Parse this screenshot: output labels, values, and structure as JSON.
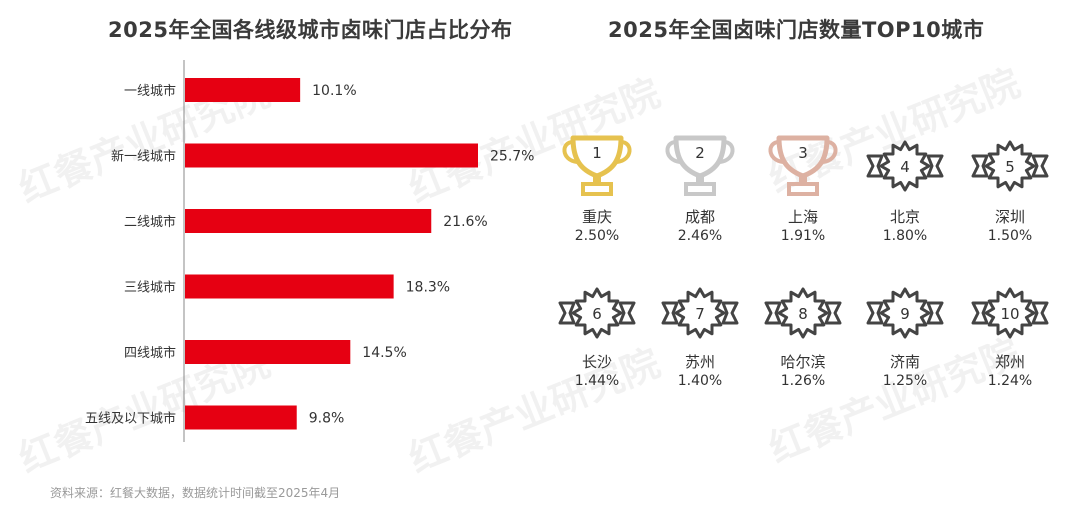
{
  "watermark": "红餐产业研究院",
  "source": "资料来源：红餐大数据，数据统计时间截至2025年4月",
  "chart_data": [
    {
      "type": "bar",
      "orientation": "horizontal",
      "title": "2025年全国各线级城市卤味门店占比分布",
      "categories": [
        "一线城市",
        "新一线城市",
        "二线城市",
        "三线城市",
        "四线城市",
        "五线及以下城市"
      ],
      "values": [
        10.1,
        25.7,
        21.6,
        18.3,
        14.5,
        9.8
      ],
      "value_labels": [
        "10.1%",
        "25.7%",
        "21.6%",
        "18.3%",
        "14.5%",
        "9.8%"
      ],
      "unit": "%",
      "color": "#e60012",
      "xlim": [
        0,
        30
      ]
    },
    {
      "type": "table",
      "title": "2025年全国卤味门店数量TOP10城市",
      "ranks": [
        {
          "rank": "1",
          "city": "重庆",
          "share": 2.5,
          "value_label": "2.50%",
          "icon": "gold-trophy-icon",
          "color": "#e6c24f"
        },
        {
          "rank": "2",
          "city": "成都",
          "share": 2.46,
          "value_label": "2.46%",
          "icon": "silver-trophy-icon",
          "color": "#c8c8c8"
        },
        {
          "rank": "3",
          "city": "上海",
          "share": 1.91,
          "value_label": "1.91%",
          "icon": "bronze-trophy-icon",
          "color": "#ddb1a2"
        },
        {
          "rank": "4",
          "city": "北京",
          "share": 1.8,
          "value_label": "1.80%",
          "icon": "badge-icon",
          "color": "#444444"
        },
        {
          "rank": "5",
          "city": "深圳",
          "share": 1.5,
          "value_label": "1.50%",
          "icon": "badge-icon",
          "color": "#444444"
        },
        {
          "rank": "6",
          "city": "长沙",
          "share": 1.44,
          "value_label": "1.44%",
          "icon": "badge-icon",
          "color": "#444444"
        },
        {
          "rank": "7",
          "city": "苏州",
          "share": 1.4,
          "value_label": "1.40%",
          "icon": "badge-icon",
          "color": "#444444"
        },
        {
          "rank": "8",
          "city": "哈尔滨",
          "share": 1.26,
          "value_label": "1.26%",
          "icon": "badge-icon",
          "color": "#444444"
        },
        {
          "rank": "9",
          "city": "济南",
          "share": 1.25,
          "value_label": "1.25%",
          "icon": "badge-icon",
          "color": "#444444"
        },
        {
          "rank": "10",
          "city": "郑州",
          "share": 1.24,
          "value_label": "1.24%",
          "icon": "badge-icon",
          "color": "#444444"
        }
      ]
    }
  ]
}
